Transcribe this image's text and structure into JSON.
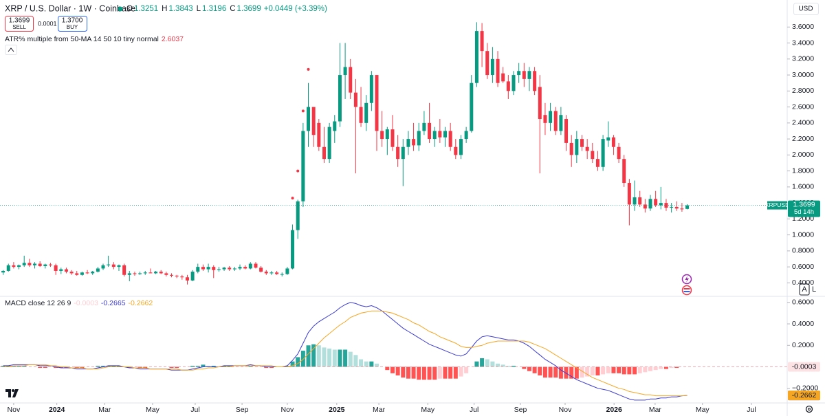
{
  "chart_data": {
    "type": "candlestick",
    "title": "XRP / U.S. Dollar · 1W · Coinbase",
    "ohlc_labels": [
      "O",
      "H",
      "L",
      "C"
    ],
    "change_label": "+0.0449 (+3.39%)",
    "sell_label": "SELL",
    "buy_label": "BUY",
    "buy_price": "1.3700",
    "spread": "0.0001",
    "indicator": {
      "title": "ATR% multiple from 50-MA 14 50 10 tiny normal",
      "value": 2.6037,
      "color": "#f23645",
      "markers": [
        {
          "x": 55,
          "value": 1.46
        },
        {
          "x": 56,
          "value": 1.8
        },
        {
          "x": 57,
          "value": 2.55
        },
        {
          "x": 58,
          "value": 3.07
        }
      ]
    },
    "currency": "USD",
    "symbol": "XRPUSD",
    "countdown": "5d 14h",
    "scale_buttons": [
      "A",
      "L"
    ],
    "up_color": "#089981",
    "down_color": "#f23645",
    "xlim": [
      -0.6,
      149
    ],
    "xticks": [
      {
        "value": 2,
        "label": "Nov"
      },
      {
        "value": 10.2,
        "label": "2024"
      },
      {
        "value": 19.3,
        "label": "Mar"
      },
      {
        "value": 28.4,
        "label": "May"
      },
      {
        "value": 36.5,
        "label": "Jul"
      },
      {
        "value": 45.4,
        "label": "Sep"
      },
      {
        "value": 54,
        "label": "Nov"
      },
      {
        "value": 63.4,
        "label": "2025"
      },
      {
        "value": 71.4,
        "label": "Mar"
      },
      {
        "value": 80.7,
        "label": "May"
      },
      {
        "value": 89.5,
        "label": "Jul"
      },
      {
        "value": 98.3,
        "label": "Sep"
      },
      {
        "value": 106.8,
        "label": "Nov"
      },
      {
        "value": 116.1,
        "label": "2026"
      },
      {
        "value": 123.9,
        "label": "Mar"
      },
      {
        "value": 132.9,
        "label": "May"
      },
      {
        "value": 142.2,
        "label": "Jul"
      }
    ],
    "ylim": [
      0.24,
      3.68
    ],
    "yticks": [
      {
        "value": 0.4,
        "label": "0.4000"
      },
      {
        "value": 0.6,
        "label": "0.6000"
      },
      {
        "value": 0.8,
        "label": "0.8000"
      },
      {
        "value": 1.0,
        "label": "1.0000"
      },
      {
        "value": 1.2,
        "label": "1.2000"
      },
      {
        "value": 1.4,
        "label": "1.4000"
      },
      {
        "value": 1.6,
        "label": "1.6000"
      },
      {
        "value": 1.8,
        "label": "1.8000"
      },
      {
        "value": 2.0,
        "label": "2.0000"
      },
      {
        "value": 2.2,
        "label": "2.2000"
      },
      {
        "value": 2.4,
        "label": "2.4000"
      },
      {
        "value": 2.6,
        "label": "2.6000"
      },
      {
        "value": 2.8,
        "label": "2.8000"
      },
      {
        "value": 3.0,
        "label": "3.0000"
      },
      {
        "value": 3.2,
        "label": "3.2000"
      },
      {
        "value": 3.4,
        "label": "3.4000"
      },
      {
        "value": 3.6,
        "label": "3.6000"
      }
    ],
    "grid": false,
    "candles": [
      [
        0.53,
        0.56,
        0.5,
        0.55
      ],
      [
        0.55,
        0.64,
        0.54,
        0.62
      ],
      [
        0.62,
        0.66,
        0.58,
        0.6
      ],
      [
        0.6,
        0.63,
        0.57,
        0.62
      ],
      [
        0.62,
        0.74,
        0.6,
        0.65
      ],
      [
        0.65,
        0.7,
        0.6,
        0.62
      ],
      [
        0.62,
        0.66,
        0.58,
        0.64
      ],
      [
        0.64,
        0.67,
        0.6,
        0.61
      ],
      [
        0.61,
        0.64,
        0.58,
        0.63
      ],
      [
        0.63,
        0.65,
        0.6,
        0.62
      ],
      [
        0.62,
        0.64,
        0.5,
        0.55
      ],
      [
        0.55,
        0.59,
        0.51,
        0.57
      ],
      [
        0.57,
        0.59,
        0.52,
        0.54
      ],
      [
        0.54,
        0.56,
        0.5,
        0.52
      ],
      [
        0.52,
        0.55,
        0.49,
        0.5
      ],
      [
        0.5,
        0.54,
        0.49,
        0.53
      ],
      [
        0.53,
        0.56,
        0.51,
        0.52
      ],
      [
        0.52,
        0.55,
        0.5,
        0.54
      ],
      [
        0.54,
        0.6,
        0.53,
        0.58
      ],
      [
        0.58,
        0.64,
        0.56,
        0.62
      ],
      [
        0.62,
        0.74,
        0.6,
        0.63
      ],
      [
        0.63,
        0.66,
        0.57,
        0.6
      ],
      [
        0.6,
        0.63,
        0.55,
        0.62
      ],
      [
        0.62,
        0.64,
        0.48,
        0.5
      ],
      [
        0.5,
        0.55,
        0.42,
        0.52
      ],
      [
        0.52,
        0.54,
        0.49,
        0.51
      ],
      [
        0.51,
        0.54,
        0.5,
        0.52
      ],
      [
        0.52,
        0.55,
        0.5,
        0.53
      ],
      [
        0.53,
        0.58,
        0.52,
        0.52
      ],
      [
        0.52,
        0.55,
        0.51,
        0.54
      ],
      [
        0.54,
        0.56,
        0.51,
        0.52
      ],
      [
        0.52,
        0.54,
        0.48,
        0.5
      ],
      [
        0.5,
        0.52,
        0.47,
        0.49
      ],
      [
        0.49,
        0.5,
        0.46,
        0.48
      ],
      [
        0.48,
        0.5,
        0.44,
        0.47
      ],
      [
        0.47,
        0.5,
        0.38,
        0.43
      ],
      [
        0.43,
        0.56,
        0.42,
        0.54
      ],
      [
        0.54,
        0.64,
        0.52,
        0.6
      ],
      [
        0.6,
        0.63,
        0.55,
        0.57
      ],
      [
        0.57,
        0.64,
        0.53,
        0.6
      ],
      [
        0.6,
        0.62,
        0.46,
        0.56
      ],
      [
        0.56,
        0.6,
        0.54,
        0.57
      ],
      [
        0.57,
        0.6,
        0.55,
        0.59
      ],
      [
        0.59,
        0.61,
        0.55,
        0.57
      ],
      [
        0.57,
        0.6,
        0.55,
        0.58
      ],
      [
        0.58,
        0.63,
        0.56,
        0.6
      ],
      [
        0.6,
        0.62,
        0.57,
        0.58
      ],
      [
        0.58,
        0.66,
        0.57,
        0.64
      ],
      [
        0.64,
        0.66,
        0.58,
        0.59
      ],
      [
        0.59,
        0.61,
        0.53,
        0.54
      ],
      [
        0.54,
        0.56,
        0.5,
        0.52
      ],
      [
        0.52,
        0.55,
        0.5,
        0.53
      ],
      [
        0.53,
        0.55,
        0.5,
        0.51
      ],
      [
        0.51,
        0.53,
        0.48,
        0.51
      ],
      [
        0.51,
        0.6,
        0.5,
        0.58
      ],
      [
        0.58,
        1.13,
        0.57,
        1.06
      ],
      [
        1.06,
        1.44,
        0.95,
        1.42
      ],
      [
        1.42,
        2.4,
        1.35,
        2.3
      ],
      [
        2.3,
        2.9,
        2.1,
        2.6
      ],
      [
        2.6,
        2.6,
        2.1,
        2.25
      ],
      [
        2.4,
        2.45,
        2.05,
        2.1
      ],
      [
        2.1,
        2.35,
        1.9,
        1.95
      ],
      [
        1.95,
        2.4,
        1.9,
        2.35
      ],
      [
        2.3,
        2.5,
        2.15,
        2.42
      ],
      [
        2.42,
        3.4,
        2.35,
        3.0
      ],
      [
        3.0,
        3.4,
        2.7,
        3.1
      ],
      [
        3.1,
        3.2,
        2.7,
        2.78
      ],
      [
        2.78,
        2.95,
        1.77,
        2.6
      ],
      [
        2.6,
        2.85,
        2.35,
        2.4
      ],
      [
        2.4,
        2.75,
        2.3,
        2.65
      ],
      [
        2.65,
        3.05,
        2.55,
        3.0
      ],
      [
        3.0,
        3.0,
        2.05,
        2.3
      ],
      [
        2.3,
        2.55,
        2.1,
        2.2
      ],
      [
        2.2,
        2.35,
        2.0,
        2.32
      ],
      [
        2.32,
        2.5,
        2.05,
        2.1
      ],
      [
        2.1,
        2.25,
        1.85,
        1.95
      ],
      [
        1.95,
        2.2,
        1.61,
        2.1
      ],
      [
        2.1,
        2.3,
        2.0,
        2.2
      ],
      [
        2.2,
        2.4,
        2.05,
        2.12
      ],
      [
        2.12,
        2.4,
        2.05,
        2.3
      ],
      [
        2.3,
        2.55,
        2.25,
        2.4
      ],
      [
        2.4,
        2.65,
        2.15,
        2.2
      ],
      [
        2.2,
        2.35,
        2.1,
        2.3
      ],
      [
        2.3,
        2.45,
        2.15,
        2.22
      ],
      [
        2.22,
        2.35,
        2.1,
        2.3
      ],
      [
        2.3,
        2.4,
        2.05,
        2.1
      ],
      [
        2.1,
        2.2,
        1.95,
        2.0
      ],
      [
        2.0,
        2.25,
        1.95,
        2.2
      ],
      [
        2.2,
        2.35,
        2.15,
        2.3
      ],
      [
        2.3,
        3.0,
        2.28,
        2.9
      ],
      [
        2.9,
        3.66,
        2.85,
        3.55
      ],
      [
        3.55,
        3.65,
        3.1,
        3.3
      ],
      [
        3.3,
        3.4,
        2.95,
        3.0
      ],
      [
        3.0,
        3.35,
        2.9,
        3.2
      ],
      [
        3.2,
        3.3,
        2.85,
        2.9
      ],
      [
        3.02,
        3.1,
        2.9,
        2.92
      ],
      [
        2.92,
        3.0,
        2.7,
        2.8
      ],
      [
        2.8,
        3.05,
        2.75,
        3.0
      ],
      [
        3.0,
        3.15,
        2.9,
        3.05
      ],
      [
        3.05,
        3.15,
        2.85,
        2.95
      ],
      [
        2.95,
        3.1,
        2.8,
        3.05
      ],
      [
        3.05,
        3.1,
        2.75,
        2.8
      ],
      [
        2.85,
        3.0,
        1.77,
        2.45
      ],
      [
        2.5,
        2.65,
        2.25,
        2.4
      ],
      [
        2.4,
        2.65,
        2.3,
        2.55
      ],
      [
        2.55,
        2.6,
        2.25,
        2.3
      ],
      [
        2.3,
        2.6,
        2.25,
        2.5
      ],
      [
        2.45,
        2.5,
        2.05,
        2.15
      ],
      [
        2.15,
        2.25,
        1.85,
        2.0
      ],
      [
        2.0,
        2.3,
        1.9,
        2.2
      ],
      [
        2.2,
        2.25,
        2.05,
        2.1
      ],
      [
        2.1,
        2.2,
        1.95,
        2.05
      ],
      [
        2.05,
        2.15,
        1.9,
        1.95
      ],
      [
        1.95,
        2.05,
        1.8,
        1.85
      ],
      [
        1.85,
        2.25,
        1.8,
        2.2
      ],
      [
        2.18,
        2.42,
        2.1,
        2.22
      ],
      [
        2.22,
        2.25,
        2.0,
        2.1
      ],
      [
        2.1,
        2.15,
        1.9,
        1.95
      ],
      [
        1.95,
        2.0,
        1.6,
        1.65
      ],
      [
        1.65,
        1.7,
        1.12,
        1.38
      ],
      [
        1.38,
        1.68,
        1.3,
        1.47
      ],
      [
        1.47,
        1.55,
        1.35,
        1.38
      ],
      [
        1.38,
        1.45,
        1.28,
        1.33
      ],
      [
        1.33,
        1.5,
        1.3,
        1.45
      ],
      [
        1.45,
        1.55,
        1.35,
        1.37
      ],
      [
        1.37,
        1.6,
        1.32,
        1.4
      ],
      [
        1.4,
        1.45,
        1.3,
        1.34
      ],
      [
        1.34,
        1.4,
        1.28,
        1.35
      ],
      [
        1.35,
        1.42,
        1.3,
        1.33
      ],
      [
        1.33,
        1.4,
        1.29,
        1.32
      ],
      [
        1.3251,
        1.3843,
        1.3196,
        1.3699
      ]
    ],
    "macd": {
      "title": "MACD close 12 26 9",
      "ylim": [
        -0.33,
        0.65
      ],
      "yticks": [
        {
          "value": 0.6,
          "label": "0.6000"
        },
        {
          "value": 0.4,
          "label": "0.4000"
        },
        {
          "value": 0.2,
          "label": "0.2000"
        },
        {
          "value": -0.2,
          "label": "−0.2000"
        }
      ],
      "histogram": {
        "colors": [
          "#26a69a",
          "#b2dfdb",
          "#ff5252",
          "#ffcdd2"
        ],
        "values": [
          0.01,
          0.01,
          0.01,
          0.01,
          0.01,
          0,
          0,
          -0.01,
          -0.01,
          0,
          -0.01,
          -0.01,
          -0.01,
          0,
          -0.01,
          -0.01,
          0,
          0,
          0.01,
          0.01,
          0.01,
          0.01,
          0.01,
          0,
          -0.01,
          0,
          -0.01,
          -0.01,
          0,
          0,
          0,
          0,
          -0.01,
          -0.01,
          0,
          0,
          0.01,
          0.01,
          0.02,
          0.01,
          0.01,
          0,
          0.01,
          0.01,
          0,
          0,
          0,
          0.01,
          0,
          0,
          -0.01,
          -0.01,
          0,
          0,
          0.01,
          0.05,
          0.09,
          0.15,
          0.2,
          0.21,
          0.2,
          0.18,
          0.17,
          0.16,
          0.16,
          0.16,
          0.14,
          0.11,
          0.07,
          0.05,
          0.05,
          0.03,
          0.0,
          -0.03,
          -0.06,
          -0.08,
          -0.1,
          -0.11,
          -0.11,
          -0.12,
          -0.12,
          -0.12,
          -0.12,
          -0.11,
          -0.11,
          -0.11,
          -0.11,
          -0.09,
          -0.06,
          0.0,
          0.05,
          0.08,
          0.07,
          0.05,
          0.03,
          0.02,
          0.01,
          0.01,
          0.0,
          -0.02,
          -0.04,
          -0.06,
          -0.08,
          -0.1,
          -0.1,
          -0.1,
          -0.11,
          -0.11,
          -0.11,
          -0.11,
          -0.1,
          -0.09,
          -0.08,
          -0.08,
          -0.07,
          -0.06,
          -0.06,
          -0.06,
          -0.07,
          -0.07,
          -0.07,
          -0.06,
          -0.05,
          -0.04,
          -0.03,
          -0.02,
          -0.02,
          -0.01,
          -0.01,
          0.0,
          -0.0003
        ]
      },
      "macd": {
        "color": "#3b3bd1",
        "values": [
          0.01,
          0.01,
          0.02,
          0.02,
          0.02,
          0.02,
          0.02,
          0.01,
          0.01,
          0.01,
          0.0,
          -0.01,
          -0.01,
          -0.01,
          -0.02,
          -0.02,
          -0.02,
          -0.02,
          -0.01,
          0.0,
          0.01,
          0.01,
          0.01,
          0.0,
          -0.01,
          -0.01,
          -0.02,
          -0.02,
          -0.02,
          -0.02,
          -0.02,
          -0.02,
          -0.03,
          -0.03,
          -0.03,
          -0.03,
          -0.02,
          -0.01,
          0.0,
          0.0,
          0.0,
          0.0,
          0.01,
          0.01,
          0.01,
          0.01,
          0.01,
          0.02,
          0.01,
          0.01,
          0.0,
          0.0,
          0.0,
          0.0,
          0.01,
          0.06,
          0.12,
          0.22,
          0.32,
          0.38,
          0.42,
          0.45,
          0.48,
          0.51,
          0.55,
          0.58,
          0.6,
          0.59,
          0.57,
          0.56,
          0.57,
          0.55,
          0.52,
          0.48,
          0.44,
          0.4,
          0.36,
          0.33,
          0.3,
          0.27,
          0.24,
          0.21,
          0.19,
          0.17,
          0.15,
          0.13,
          0.11,
          0.1,
          0.12,
          0.18,
          0.24,
          0.28,
          0.29,
          0.28,
          0.27,
          0.26,
          0.25,
          0.25,
          0.24,
          0.22,
          0.19,
          0.15,
          0.11,
          0.07,
          0.04,
          0.01,
          -0.03,
          -0.06,
          -0.09,
          -0.12,
          -0.14,
          -0.16,
          -0.18,
          -0.2,
          -0.21,
          -0.22,
          -0.24,
          -0.26,
          -0.28,
          -0.3,
          -0.31,
          -0.31,
          -0.31,
          -0.3,
          -0.3,
          -0.29,
          -0.29,
          -0.28,
          -0.28,
          -0.27,
          -0.2665
        ]
      },
      "signal": {
        "color": "#f5a623",
        "values": [
          0.0,
          0.0,
          0.01,
          0.01,
          0.01,
          0.02,
          0.02,
          0.02,
          0.02,
          0.01,
          0.01,
          0.0,
          0.0,
          -0.01,
          -0.01,
          -0.01,
          -0.02,
          -0.02,
          -0.02,
          -0.01,
          0.0,
          0.0,
          0.0,
          0.0,
          0.0,
          -0.01,
          -0.01,
          -0.01,
          -0.02,
          -0.02,
          -0.02,
          -0.02,
          -0.02,
          -0.02,
          -0.03,
          -0.03,
          -0.03,
          -0.02,
          -0.02,
          -0.01,
          -0.01,
          0.0,
          0.0,
          0.0,
          0.01,
          0.01,
          0.01,
          0.01,
          0.01,
          0.01,
          0.01,
          0.01,
          0.0,
          0.0,
          0.0,
          0.01,
          0.03,
          0.07,
          0.12,
          0.17,
          0.22,
          0.27,
          0.31,
          0.35,
          0.39,
          0.42,
          0.46,
          0.48,
          0.5,
          0.51,
          0.52,
          0.52,
          0.52,
          0.51,
          0.5,
          0.48,
          0.46,
          0.44,
          0.41,
          0.39,
          0.36,
          0.33,
          0.31,
          0.28,
          0.26,
          0.24,
          0.22,
          0.19,
          0.18,
          0.18,
          0.19,
          0.2,
          0.22,
          0.23,
          0.24,
          0.24,
          0.24,
          0.24,
          0.24,
          0.24,
          0.23,
          0.21,
          0.19,
          0.17,
          0.14,
          0.11,
          0.08,
          0.05,
          0.02,
          -0.01,
          -0.04,
          -0.07,
          -0.1,
          -0.12,
          -0.14,
          -0.16,
          -0.18,
          -0.2,
          -0.21,
          -0.23,
          -0.24,
          -0.25,
          -0.26,
          -0.26,
          -0.27,
          -0.27,
          -0.27,
          -0.27,
          -0.27,
          -0.27,
          -0.2662
        ]
      }
    }
  }
}
